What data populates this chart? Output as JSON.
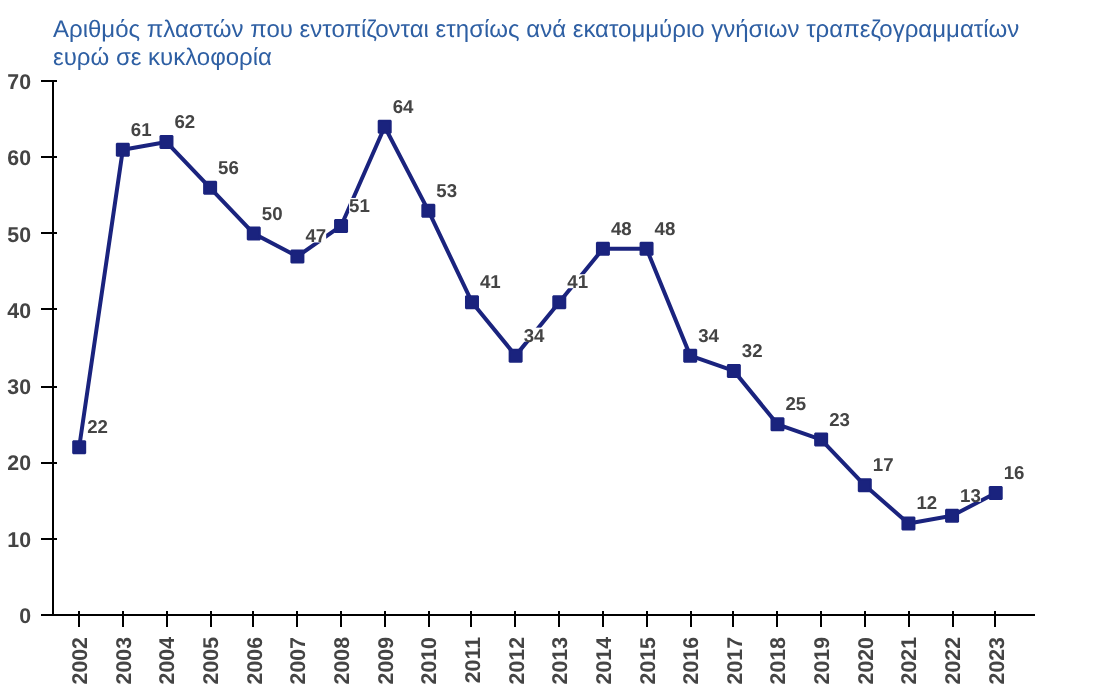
{
  "chart_data": {
    "type": "line",
    "title": "Αριθμός πλαστών που εντοπίζονται ετησίως ανά εκατομμύριο γνήσιων τραπεζογραμματίων ευρώ σε κυκλοφορία",
    "categories": [
      "2002",
      "2003",
      "2004",
      "2005",
      "2006",
      "2007",
      "2008",
      "2009",
      "2010",
      "2011",
      "2012",
      "2013",
      "2014",
      "2015",
      "2016",
      "2017",
      "2018",
      "2019",
      "2020",
      "2021",
      "2022",
      "2023"
    ],
    "series": [
      {
        "color": "#1a237e",
        "values": [
          22,
          61,
          62,
          56,
          50,
          47,
          51,
          64,
          53,
          41,
          34,
          41,
          48,
          48,
          34,
          32,
          25,
          23,
          17,
          12,
          13,
          16
        ]
      }
    ],
    "ylim": [
      0,
      70
    ],
    "yticks": [
      0,
      10,
      20,
      30,
      40,
      50,
      60,
      70
    ],
    "grid": false,
    "marker": "square",
    "line_style": "solid",
    "data_labels": true
  }
}
